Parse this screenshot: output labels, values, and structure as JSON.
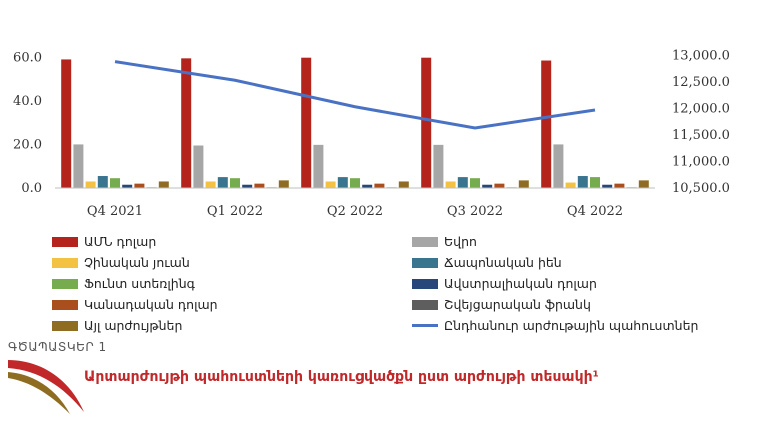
{
  "chart_data": {
    "type": "bar",
    "categories": [
      "Q4 2021",
      "Q1 2022",
      "Q2 2022",
      "Q3 2022",
      "Q4 2022"
    ],
    "y_left_ticks": [
      "0.0",
      "20.0",
      "40.0",
      "60.0"
    ],
    "y_right_ticks": [
      "10,500.0",
      "11,000.0",
      "11,500.0",
      "12,000.0",
      "12,500.0",
      "13,000.0"
    ],
    "ylim_left": [
      0,
      67
    ],
    "ylim_right": [
      10500,
      13250
    ],
    "series": [
      {
        "name": "ԱՄՆ դոլար",
        "color": "#b5241c",
        "values": [
          59.0,
          59.5,
          59.8,
          59.8,
          58.5
        ]
      },
      {
        "name": "Եվրո",
        "color": "#a6a6a6",
        "values": [
          20.0,
          19.5,
          19.8,
          19.8,
          20.0
        ]
      },
      {
        "name": "Չինական յուան",
        "color": "#f4c242",
        "values": [
          3.0,
          3.0,
          3.0,
          3.0,
          2.5
        ]
      },
      {
        "name": "Ճապոնական իեն",
        "color": "#3a7590",
        "values": [
          5.5,
          5.0,
          5.0,
          5.0,
          5.5
        ]
      },
      {
        "name": "Ֆունտ ստեռլինգ",
        "color": "#77ac4e",
        "values": [
          4.5,
          4.5,
          4.5,
          4.5,
          5.0
        ]
      },
      {
        "name": "Ավստրալիական դոլար",
        "color": "#27467a",
        "values": [
          1.5,
          1.5,
          1.5,
          1.5,
          1.5
        ]
      },
      {
        "name": "Կանադական դոլար",
        "color": "#a94f1e",
        "values": [
          2.0,
          2.0,
          2.0,
          2.0,
          2.0
        ]
      },
      {
        "name": "Շվեյցարական ֆրանկ",
        "color": "#5e5e5e",
        "values": [
          0.3,
          0.3,
          0.3,
          0.3,
          0.3
        ]
      },
      {
        "name": "Այլ արժույթներ",
        "color": "#8e6d23",
        "values": [
          3.0,
          3.5,
          3.0,
          3.5,
          3.5
        ]
      }
    ],
    "line_series": {
      "name": "Ընդհանուր արժութային պահուստներ",
      "color": "#4a72c4",
      "values": [
        12880,
        12530,
        12030,
        11630,
        11970
      ]
    }
  },
  "figure": {
    "label": "ԳԾԱՊԱՏԿԵՐ 1",
    "title": "Արտարժույթի պահուստների կառուցվածքն ըստ արժույթի տեսակի¹"
  }
}
